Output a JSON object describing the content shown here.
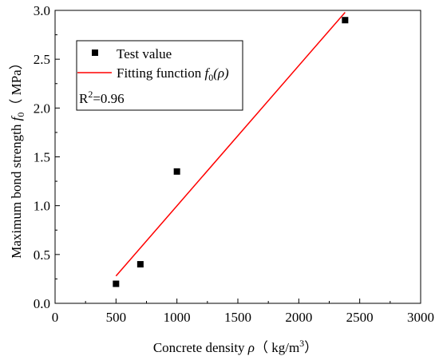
{
  "chart_data": {
    "type": "scatter",
    "xlabel": {
      "prefix": "Concrete density ",
      "symbol": "ρ",
      "units": "（ kg/m",
      "units_sup": "3",
      "units_close": "）"
    },
    "ylabel": {
      "prefix": "Maximum bond strength ",
      "symbol": "f",
      "symbol_sub": "0",
      "units": "（ MPa）"
    },
    "xlim": [
      0,
      3000
    ],
    "ylim": [
      0.0,
      3.0
    ],
    "x_ticks": [
      0,
      500,
      1000,
      1500,
      2000,
      2500,
      3000
    ],
    "y_ticks": [
      0.0,
      0.5,
      1.0,
      1.5,
      2.0,
      2.5,
      3.0
    ],
    "x_tick_labels": [
      "0",
      "500",
      "1000",
      "1500",
      "2000",
      "2500",
      "3000"
    ],
    "y_tick_labels": [
      "0.0",
      "0.5",
      "1.0",
      "1.5",
      "2.0",
      "2.5",
      "3.0"
    ],
    "grid": false,
    "legend_position": "top-left",
    "series": [
      {
        "name": "Test value",
        "kind": "scatter",
        "color": "#000000",
        "marker": "square",
        "points": [
          {
            "x": 500,
            "y": 0.2
          },
          {
            "x": 700,
            "y": 0.4
          },
          {
            "x": 1000,
            "y": 1.35
          },
          {
            "x": 2380,
            "y": 2.9
          }
        ]
      },
      {
        "name_prefix": "Fitting function ",
        "name_symbol": "f",
        "name_sub": "0",
        "name_arg": "(ρ)",
        "kind": "line",
        "color": "#ff0000",
        "points": [
          {
            "x": 500,
            "y": 0.28
          },
          {
            "x": 2380,
            "y": 2.98
          }
        ]
      }
    ],
    "annotation": {
      "text": "R",
      "sup": "2",
      "rest": "=0.96"
    }
  }
}
